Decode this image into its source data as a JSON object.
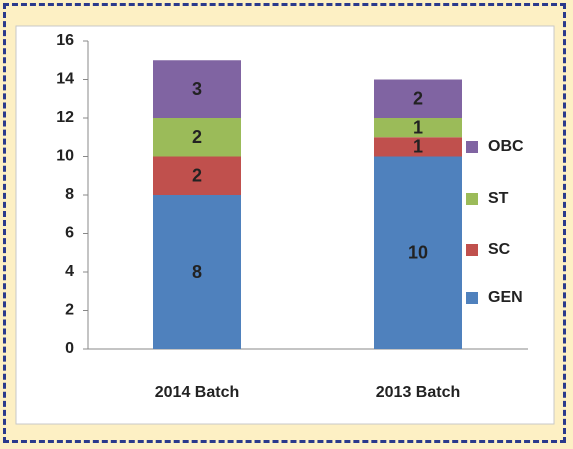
{
  "chart_data": {
    "type": "stacked_bar",
    "categories": [
      "2014 Batch",
      "2013 Batch"
    ],
    "series": [
      {
        "name": "GEN",
        "color": "#4f81bd",
        "values": [
          8,
          10
        ]
      },
      {
        "name": "SC",
        "color": "#c0504d",
        "values": [
          2,
          1
        ]
      },
      {
        "name": "ST",
        "color": "#9bbb59",
        "values": [
          2,
          1
        ]
      },
      {
        "name": "OBC",
        "color": "#8064a2",
        "values": [
          3,
          2
        ]
      }
    ],
    "ylim": [
      0,
      16
    ],
    "yticks": [
      0,
      2,
      4,
      6,
      8,
      10,
      12,
      14,
      16
    ],
    "legend": "right"
  }
}
